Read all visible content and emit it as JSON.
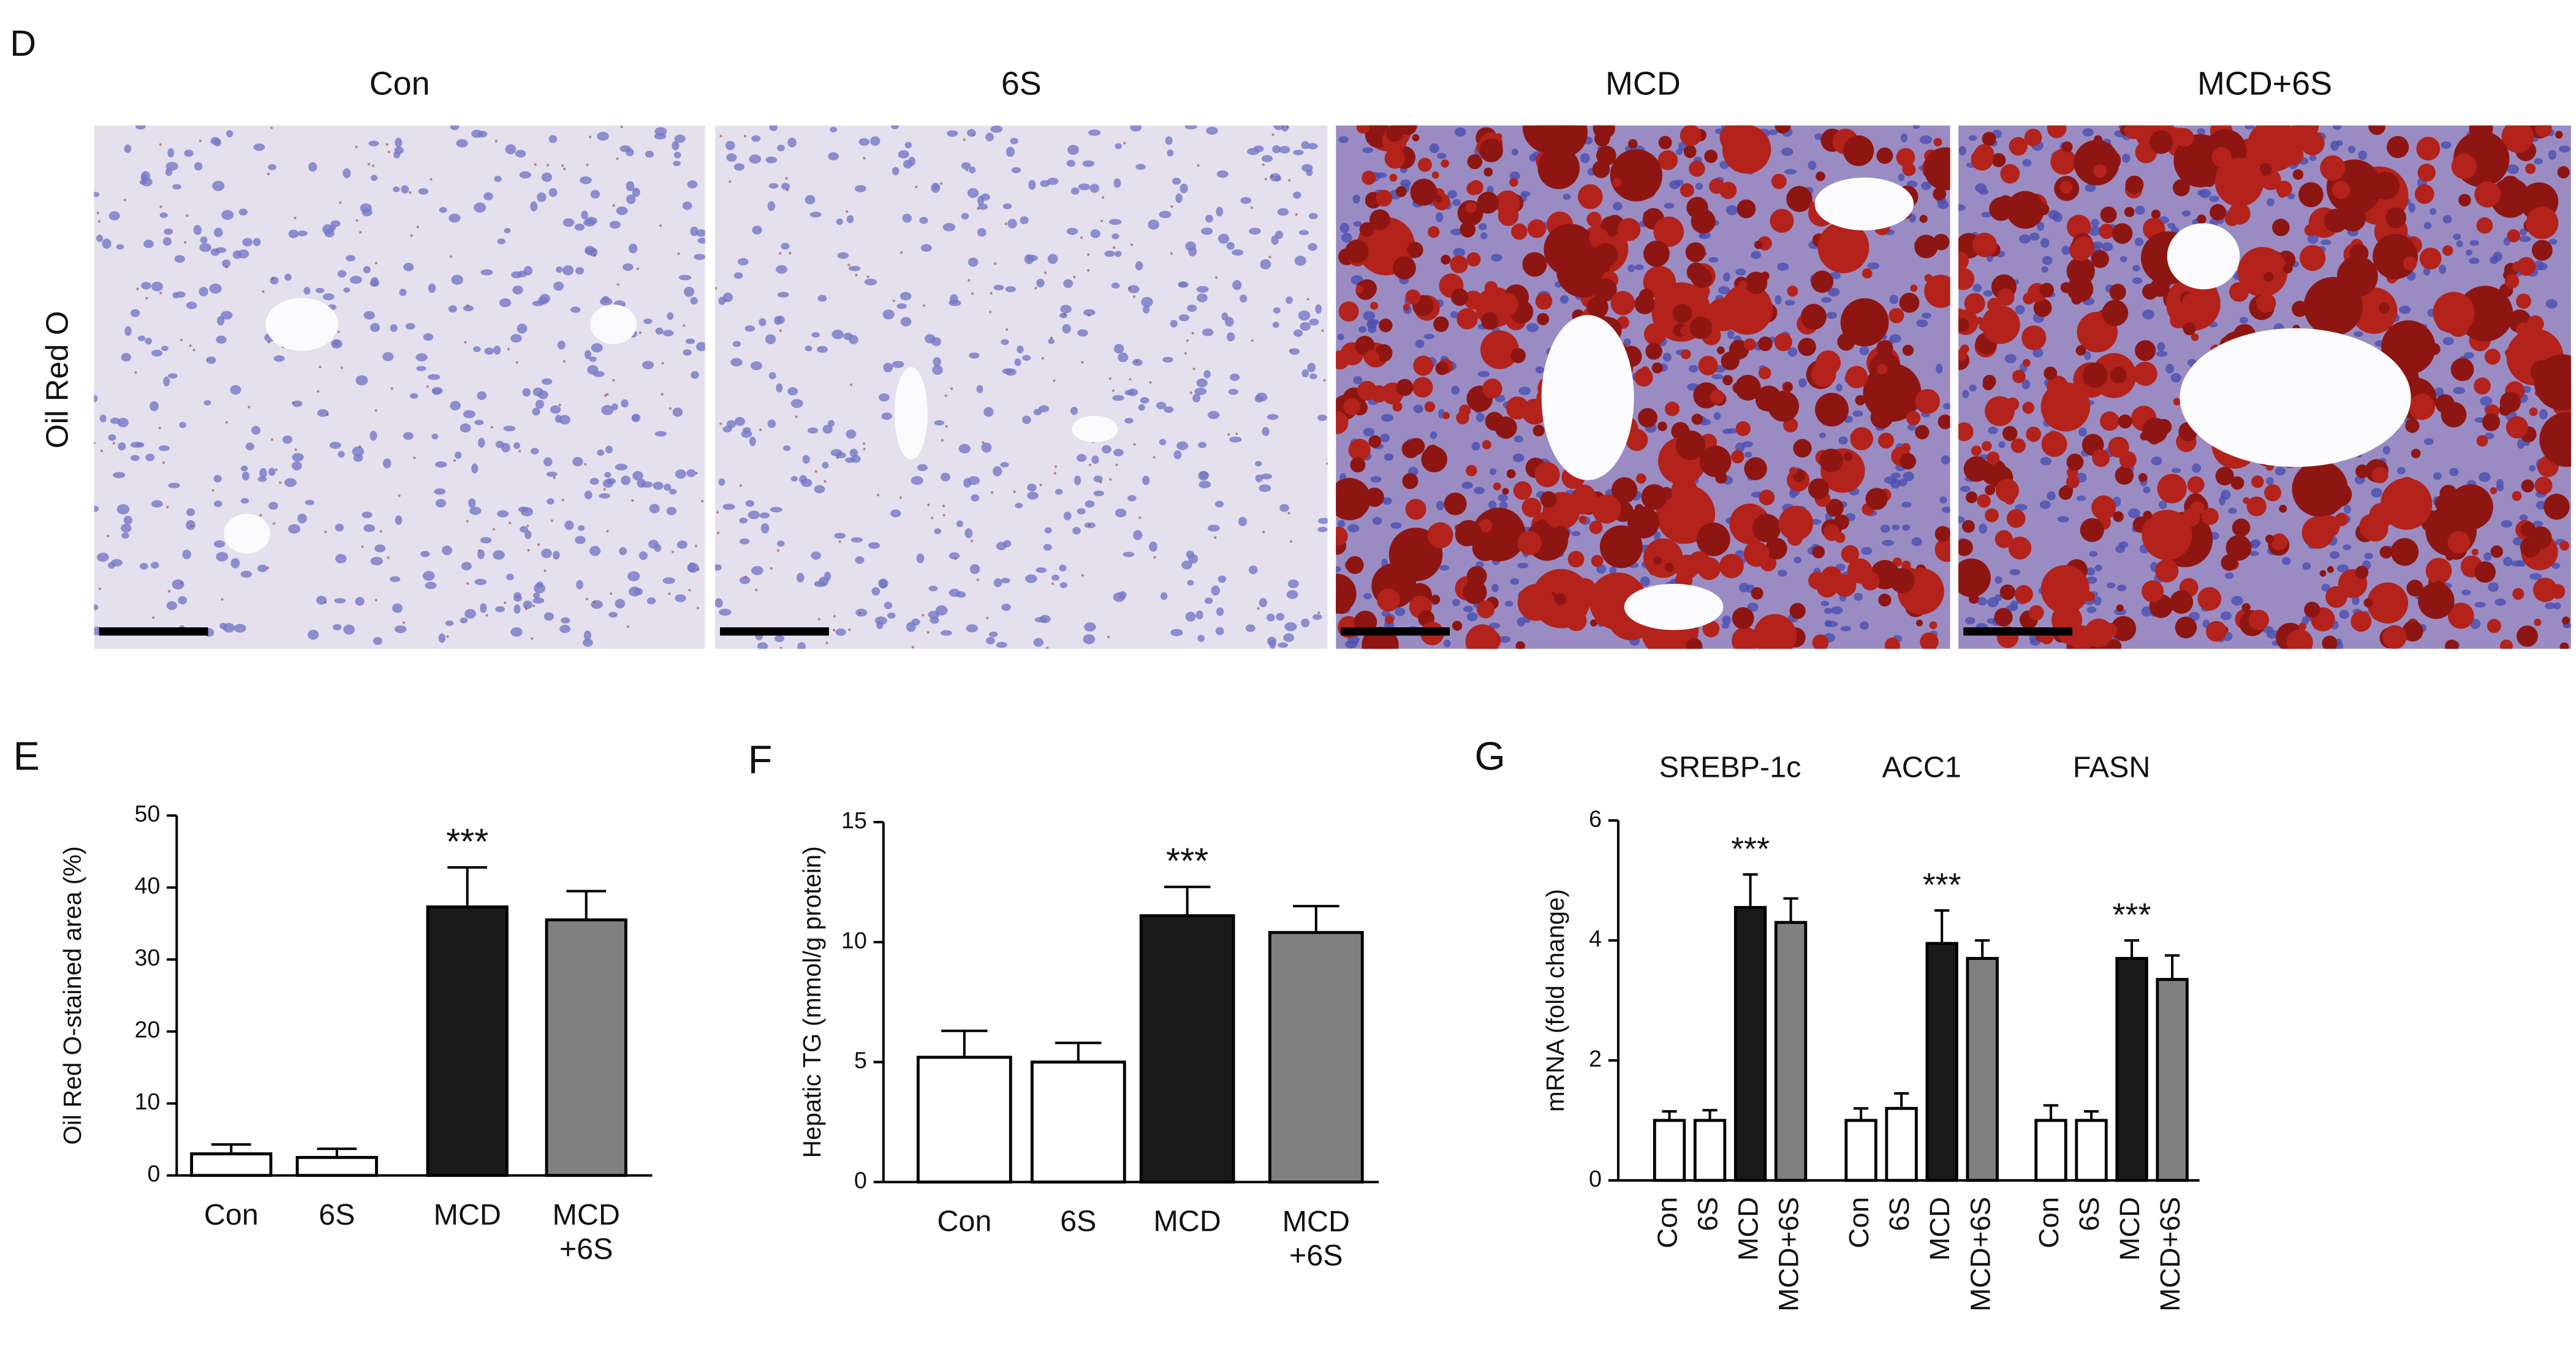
{
  "panel_d": {
    "label": "D",
    "row_label": "Oil Red O",
    "titles": [
      "Con",
      "6S",
      "MCD",
      "MCD+6S"
    ]
  },
  "chart_data": [
    {
      "type": "bar",
      "panel": "E",
      "ylabel": "Oil Red O-stained area (%)",
      "categories": [
        "Con",
        "6S",
        "MCD",
        "MCD\n+6S"
      ],
      "values": [
        3.0,
        2.5,
        37.3,
        35.5
      ],
      "errors": [
        1.3,
        1.2,
        5.5,
        4.0
      ],
      "colors": [
        "#ffffff",
        "#ffffff",
        "#1a1a1a",
        "#808080"
      ],
      "annotations": [
        null,
        null,
        "***",
        null
      ],
      "ylim": [
        0,
        50
      ],
      "yticks": [
        0,
        10,
        20,
        30,
        40,
        50
      ]
    },
    {
      "type": "bar",
      "panel": "F",
      "ylabel": "Hepatic TG (mmol/g protein)",
      "categories": [
        "Con",
        "6S",
        "MCD",
        "MCD\n+6S"
      ],
      "values": [
        5.2,
        5.0,
        11.1,
        10.4
      ],
      "errors": [
        1.1,
        0.8,
        1.2,
        1.1
      ],
      "colors": [
        "#ffffff",
        "#ffffff",
        "#1a1a1a",
        "#808080"
      ],
      "annotations": [
        null,
        null,
        "***",
        null
      ],
      "ylim": [
        0,
        15
      ],
      "yticks": [
        0,
        5,
        10,
        15
      ]
    },
    {
      "type": "grouped_bar",
      "panel": "G",
      "ylabel": "mRNA (fold change)",
      "groups": [
        "SREBP-1c",
        "ACC1",
        "FASN"
      ],
      "series": [
        {
          "name": "Con",
          "color": "#ffffff",
          "values": [
            1.0,
            1.0,
            1.0
          ],
          "errors": [
            0.15,
            0.2,
            0.25
          ]
        },
        {
          "name": "6S",
          "color": "#ffffff",
          "values": [
            1.0,
            1.2,
            1.0
          ],
          "errors": [
            0.17,
            0.25,
            0.15
          ]
        },
        {
          "name": "MCD",
          "color": "#1a1a1a",
          "values": [
            4.55,
            3.95,
            3.7
          ],
          "errors": [
            0.55,
            0.55,
            0.3
          ]
        },
        {
          "name": "MCD+6S",
          "color": "#808080",
          "values": [
            4.3,
            3.7,
            3.35
          ],
          "errors": [
            0.4,
            0.3,
            0.4
          ]
        }
      ],
      "group_annotations": [
        "***",
        "***",
        "***"
      ],
      "ylim": [
        0,
        6
      ],
      "yticks": [
        0,
        2,
        4,
        6
      ]
    }
  ]
}
